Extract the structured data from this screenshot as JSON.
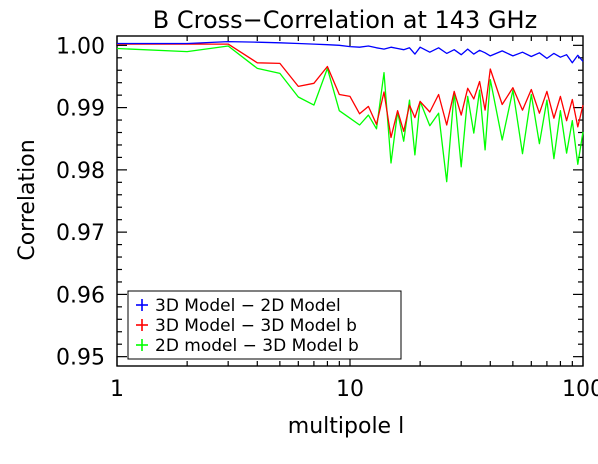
{
  "chart_data": {
    "type": "line",
    "title": "B Cross−Correlation at 143 GHz",
    "xlabel": "multipole l",
    "ylabel": "Correlation",
    "xscale": "log",
    "xlim": [
      1,
      100
    ],
    "ylim": [
      0.9485,
      1.0015
    ],
    "xticks": [
      1,
      10,
      100
    ],
    "xtick_labels": [
      "1",
      "10",
      "100"
    ],
    "yticks": [
      0.95,
      0.96,
      0.97,
      0.98,
      0.99,
      1.0
    ],
    "ytick_labels": [
      "0.95",
      "0.96",
      "0.97",
      "0.98",
      "0.99",
      "1.00"
    ],
    "grid": false,
    "legend_position": "bottom-left",
    "series": [
      {
        "name": "3D Model − 2D Model",
        "color": "#0000ff",
        "x": [
          1,
          2,
          3,
          4,
          5,
          6,
          7,
          8,
          9,
          10,
          11,
          12,
          13,
          14,
          15,
          16,
          17,
          18,
          19,
          20,
          22,
          24,
          26,
          28,
          30,
          32,
          34,
          36,
          38,
          40,
          45,
          50,
          55,
          60,
          65,
          70,
          75,
          80,
          85,
          90,
          95,
          100
        ],
        "y": [
          1.0003,
          1.0003,
          1.0006,
          1.0005,
          1.0004,
          1.0003,
          1.0002,
          1.0001,
          1.0,
          0.9998,
          0.9997,
          0.9999,
          0.9996,
          0.9994,
          0.9997,
          0.9995,
          0.9993,
          0.9996,
          0.9986,
          0.9997,
          0.9989,
          0.9996,
          0.9987,
          0.9993,
          0.9985,
          0.9994,
          0.9986,
          0.9992,
          0.9988,
          0.9983,
          0.9991,
          0.9983,
          0.9989,
          0.9982,
          0.9988,
          0.9979,
          0.9987,
          0.9981,
          0.9985,
          0.9972,
          0.9984,
          0.9974
        ]
      },
      {
        "name": "3D Model − 3D Model b",
        "color": "#ff0000",
        "x": [
          1,
          2,
          3,
          4,
          5,
          6,
          7,
          8,
          9,
          10,
          11,
          12,
          13,
          14,
          15,
          16,
          17,
          18,
          19,
          20,
          22,
          24,
          26,
          28,
          30,
          32,
          34,
          36,
          38,
          40,
          45,
          50,
          55,
          60,
          65,
          70,
          75,
          80,
          85,
          90,
          95,
          100
        ],
        "y": [
          1.0002,
          1.0002,
          1.0002,
          0.9972,
          0.9971,
          0.9934,
          0.9939,
          0.9966,
          0.9921,
          0.9918,
          0.989,
          0.9902,
          0.9873,
          0.9925,
          0.9852,
          0.9895,
          0.9862,
          0.9904,
          0.9884,
          0.991,
          0.9893,
          0.9921,
          0.9872,
          0.9926,
          0.9888,
          0.9931,
          0.9914,
          0.9942,
          0.9896,
          0.9962,
          0.9905,
          0.9932,
          0.9896,
          0.9929,
          0.9891,
          0.9926,
          0.9883,
          0.9918,
          0.9879,
          0.9913,
          0.9869,
          0.9904
        ]
      },
      {
        "name": "2D model − 3D Model b",
        "color": "#00ff00",
        "x": [
          1,
          2,
          3,
          4,
          5,
          6,
          7,
          8,
          9,
          10,
          11,
          12,
          13,
          14,
          15,
          16,
          17,
          18,
          19,
          20,
          22,
          24,
          26,
          28,
          30,
          32,
          34,
          36,
          38,
          40,
          45,
          50,
          55,
          60,
          65,
          70,
          75,
          80,
          85,
          90,
          95,
          100
        ],
        "y": [
          0.9995,
          0.999,
          0.9999,
          0.9963,
          0.9955,
          0.9917,
          0.9904,
          0.9963,
          0.9895,
          0.9883,
          0.9872,
          0.9888,
          0.9866,
          0.9956,
          0.9811,
          0.9893,
          0.9846,
          0.9912,
          0.9824,
          0.991,
          0.9871,
          0.9891,
          0.9781,
          0.9925,
          0.9805,
          0.9918,
          0.9859,
          0.9928,
          0.9832,
          0.9945,
          0.9848,
          0.9928,
          0.9826,
          0.9921,
          0.9842,
          0.9912,
          0.9818,
          0.9895,
          0.9827,
          0.9879,
          0.9809,
          0.9861
        ]
      }
    ]
  }
}
